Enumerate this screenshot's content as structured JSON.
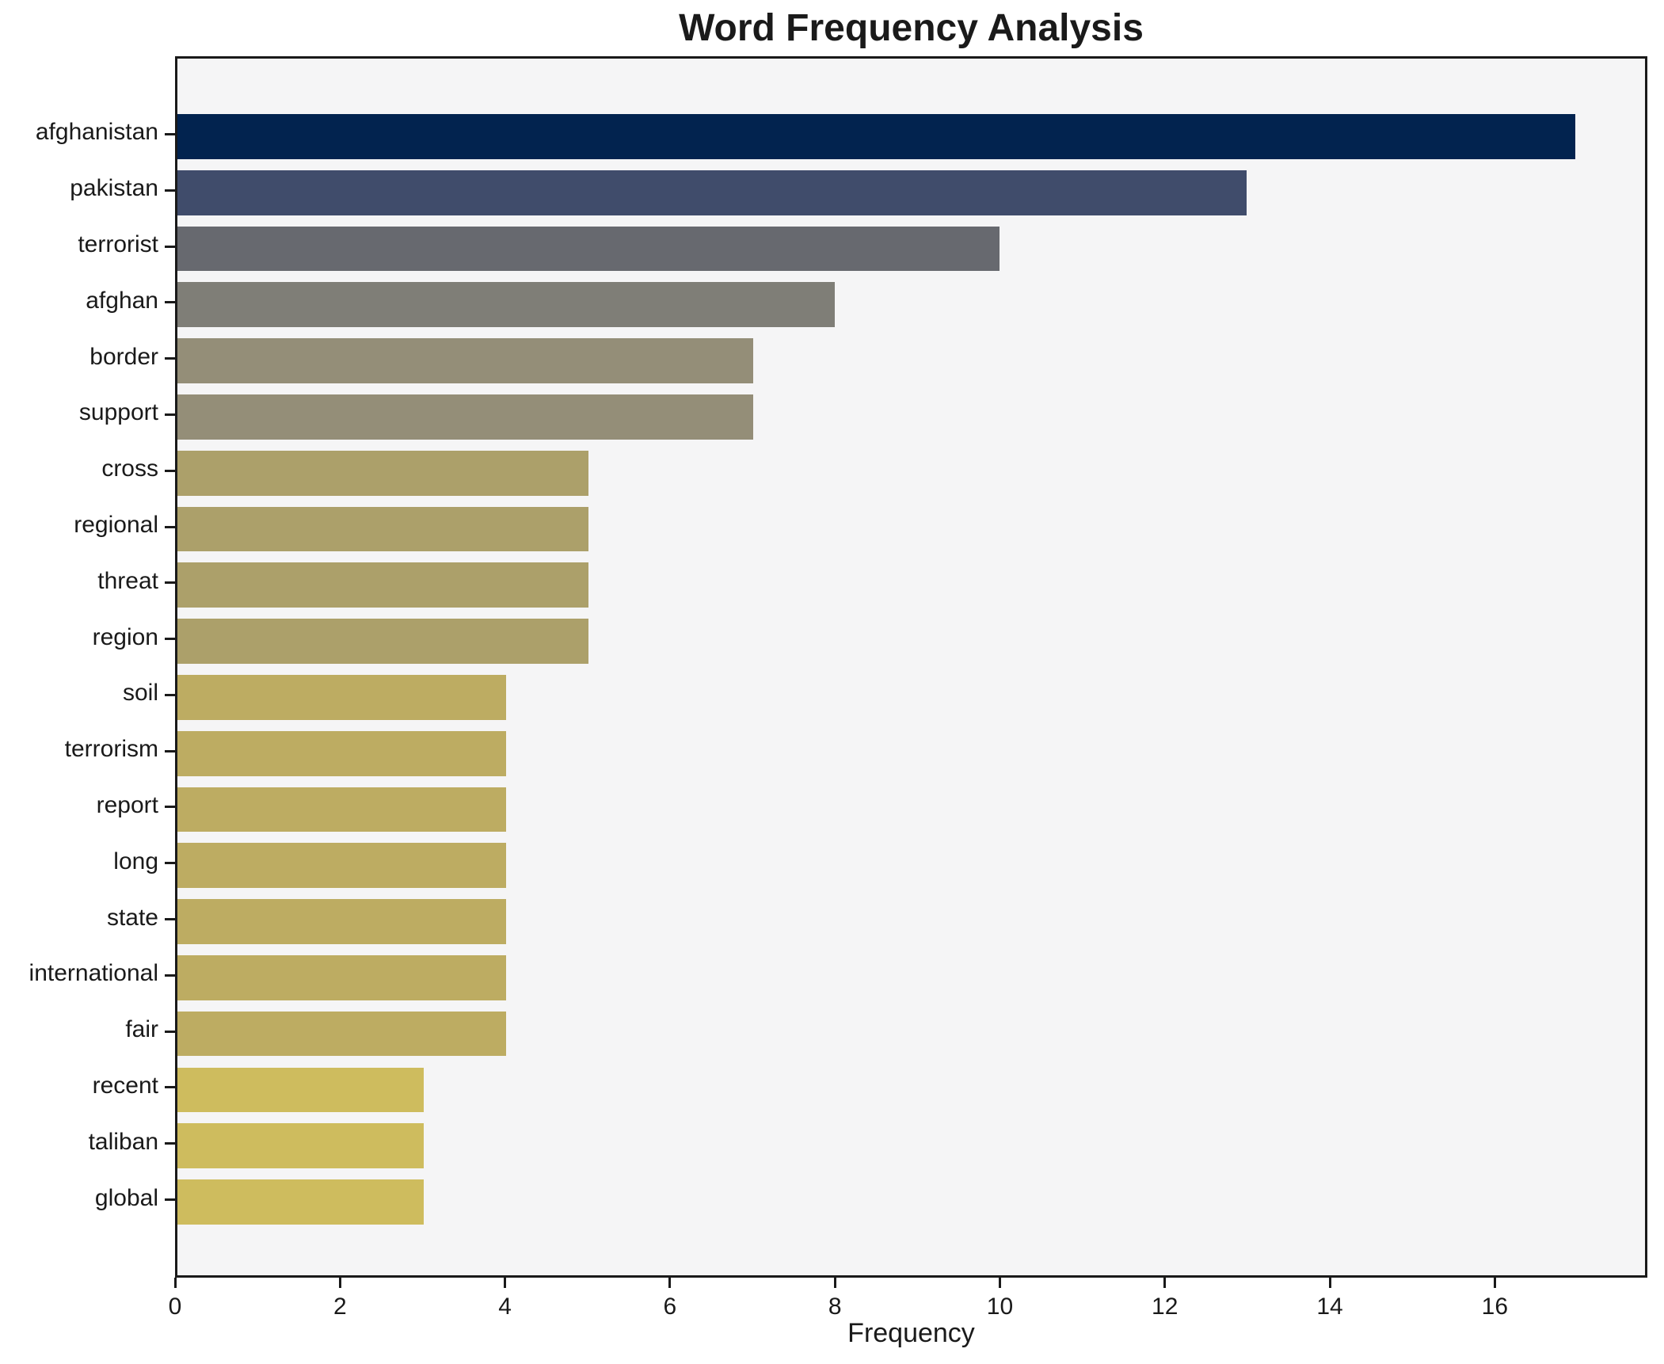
{
  "chart_data": {
    "type": "bar",
    "orientation": "horizontal",
    "title": "Word Frequency Analysis",
    "xlabel": "Frequency",
    "ylabel": "",
    "categories": [
      "afghanistan",
      "pakistan",
      "terrorist",
      "afghan",
      "border",
      "support",
      "cross",
      "regional",
      "threat",
      "region",
      "soil",
      "terrorism",
      "report",
      "long",
      "state",
      "international",
      "fair",
      "recent",
      "taliban",
      "global"
    ],
    "values": [
      17,
      13,
      10,
      8,
      7,
      7,
      5,
      5,
      5,
      5,
      4,
      4,
      4,
      4,
      4,
      4,
      4,
      3,
      3,
      3
    ],
    "bar_colors": [
      "#02234f",
      "#404c6b",
      "#67696f",
      "#7f7e77",
      "#948e78",
      "#948e78",
      "#aca06a",
      "#aca06a",
      "#aca06a",
      "#aca06a",
      "#bdac62",
      "#bdac62",
      "#bdac62",
      "#bdac62",
      "#bdac62",
      "#bdac62",
      "#bdac62",
      "#cebc5e",
      "#cebc5e",
      "#cebc5e"
    ],
    "xticks": [
      0,
      2,
      4,
      6,
      8,
      10,
      12,
      14,
      16
    ],
    "xlim": [
      0,
      17.85
    ],
    "grid": false,
    "legend_position": "none",
    "colors": {
      "plot_background": "#f5f5f6",
      "figure_background": "#ffffff",
      "spine": "#1a1a1a",
      "text": "#1a1a1a"
    }
  }
}
